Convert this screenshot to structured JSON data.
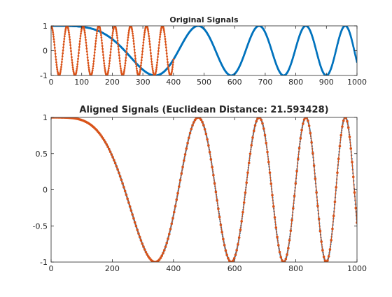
{
  "figure": {
    "background": "#ffffff"
  },
  "colors": {
    "series1": "#0072BD",
    "series2": "#D95319",
    "axis": "#262626"
  },
  "chart_data": [
    {
      "type": "line",
      "title": "Original Signals",
      "xlabel": "",
      "ylabel": "",
      "xlim": [
        0,
        1000
      ],
      "ylim": [
        -1,
        1
      ],
      "xticks": [
        0,
        100,
        200,
        300,
        400,
        500,
        600,
        700,
        800,
        900,
        1000
      ],
      "yticks": [
        -1,
        0,
        1
      ],
      "grid": false,
      "legend": "none",
      "marker": "dot",
      "series": [
        {
          "color": "#0072BD",
          "function": "y = cos(pi * (x/340)^2)",
          "x_range": [
            1,
            1000
          ],
          "points": 1000
        },
        {
          "color": "#D95319",
          "function": "y = cos(2*pi*x/52)",
          "x_range": [
            0,
            400
          ],
          "points": 400
        }
      ]
    },
    {
      "type": "line",
      "title": "Aligned Signals (Euclidean Distance: 21.593428)",
      "xlabel": "",
      "ylabel": "",
      "xlim": [
        0,
        1000
      ],
      "ylim": [
        -1,
        1
      ],
      "xticks": [
        0,
        200,
        400,
        600,
        800,
        1000
      ],
      "yticks": [
        -1,
        -0.5,
        0,
        0.5,
        1
      ],
      "grid": false,
      "legend": "none",
      "marker": "dot",
      "series": [
        {
          "color": "#0072BD",
          "function": "y = cos(pi * (x/340)^2)",
          "x_range": [
            1,
            1000
          ],
          "points": 1000
        },
        {
          "color": "#D95319",
          "function": "y = cos(pi * (x/340)^2)",
          "x_range": [
            1,
            1000
          ],
          "points": 250
        }
      ]
    }
  ]
}
